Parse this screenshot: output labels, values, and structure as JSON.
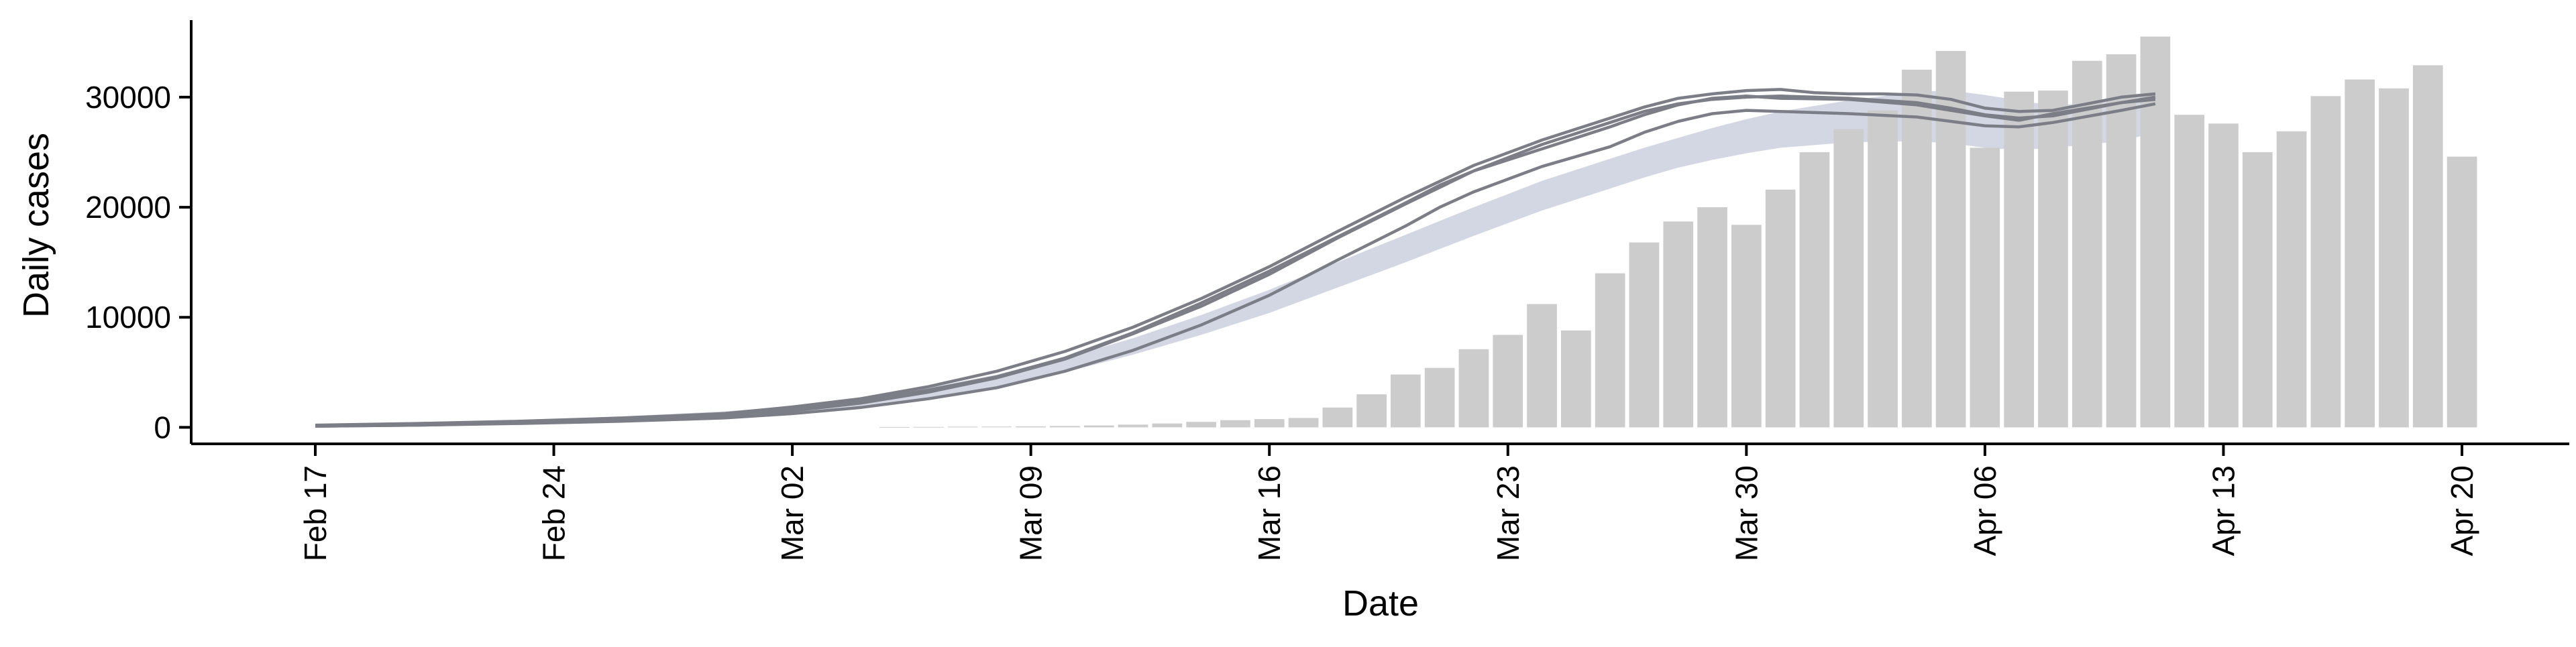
{
  "chart_data": {
    "type": "bar",
    "title": "",
    "xlabel": "Date",
    "ylabel": "Daily cases",
    "x_range": [
      "2020-02-17",
      "2020-04-20"
    ],
    "ylim": [
      -1500,
      37000
    ],
    "grid": false,
    "legend": "none",
    "x_ticks": [
      {
        "date": "2020-02-17",
        "label": "Feb 17"
      },
      {
        "date": "2020-02-24",
        "label": "Feb 24"
      },
      {
        "date": "2020-03-02",
        "label": "Mar 02"
      },
      {
        "date": "2020-03-09",
        "label": "Mar 09"
      },
      {
        "date": "2020-03-16",
        "label": "Mar 16"
      },
      {
        "date": "2020-03-23",
        "label": "Mar 23"
      },
      {
        "date": "2020-03-30",
        "label": "Mar 30"
      },
      {
        "date": "2020-04-06",
        "label": "Apr 06"
      },
      {
        "date": "2020-04-13",
        "label": "Apr 13"
      },
      {
        "date": "2020-04-20",
        "label": "Apr 20"
      }
    ],
    "y_ticks": [
      {
        "value": 0,
        "label": "0"
      },
      {
        "value": 10000,
        "label": "10000"
      },
      {
        "value": 20000,
        "label": "20000"
      },
      {
        "value": 30000,
        "label": "30000"
      }
    ],
    "bars": {
      "color": "#cccccc",
      "x": [
        "2020-03-05",
        "2020-03-06",
        "2020-03-07",
        "2020-03-08",
        "2020-03-09",
        "2020-03-10",
        "2020-03-11",
        "2020-03-12",
        "2020-03-13",
        "2020-03-14",
        "2020-03-15",
        "2020-03-16",
        "2020-03-17",
        "2020-03-18",
        "2020-03-19",
        "2020-03-20",
        "2020-03-21",
        "2020-03-22",
        "2020-03-23",
        "2020-03-24",
        "2020-03-25",
        "2020-03-26",
        "2020-03-27",
        "2020-03-28",
        "2020-03-29",
        "2020-03-30",
        "2020-03-31",
        "2020-04-01",
        "2020-04-02",
        "2020-04-03",
        "2020-04-04",
        "2020-04-05",
        "2020-04-06",
        "2020-04-07",
        "2020-04-08",
        "2020-04-09",
        "2020-04-10",
        "2020-04-11",
        "2020-04-12",
        "2020-04-13",
        "2020-04-14",
        "2020-04-15",
        "2020-04-16",
        "2020-04-17",
        "2020-04-18",
        "2020-04-19",
        "2020-04-20"
      ],
      "values": [
        30,
        40,
        60,
        70,
        90,
        120,
        170,
        250,
        350,
        500,
        650,
        750,
        850,
        1800,
        3000,
        4800,
        5400,
        7100,
        8400,
        11200,
        8800,
        14000,
        16800,
        18700,
        20000,
        18400,
        21600,
        25000,
        27100,
        28800,
        32500,
        34200,
        25400,
        30500,
        30600,
        33300,
        33900,
        35500,
        28400,
        27600,
        25000,
        26900,
        30100,
        31600,
        30800,
        32900,
        24600
      ]
    },
    "band": {
      "color": "#cdd3e0",
      "x": [
        "2020-02-17",
        "2020-02-20",
        "2020-02-23",
        "2020-02-26",
        "2020-02-29",
        "2020-03-02",
        "2020-03-04",
        "2020-03-06",
        "2020-03-08",
        "2020-03-10",
        "2020-03-12",
        "2020-03-14",
        "2020-03-16",
        "2020-03-18",
        "2020-03-20",
        "2020-03-22",
        "2020-03-24",
        "2020-03-26",
        "2020-03-27",
        "2020-03-28",
        "2020-03-29",
        "2020-03-30",
        "2020-03-31",
        "2020-04-02",
        "2020-04-04",
        "2020-04-05",
        "2020-04-06",
        "2020-04-07",
        "2020-04-08",
        "2020-04-10",
        "2020-04-11"
      ],
      "upper": [
        250,
        400,
        650,
        1000,
        1450,
        1900,
        2600,
        3600,
        4800,
        6300,
        8100,
        10200,
        12500,
        15000,
        17500,
        20000,
        22400,
        24400,
        25400,
        26300,
        27200,
        28000,
        28700,
        29700,
        30500,
        30600,
        30200,
        29700,
        29200,
        29800,
        30500
      ],
      "lower": [
        100,
        220,
        400,
        660,
        1000,
        1400,
        1900,
        2700,
        3700,
        5000,
        6600,
        8400,
        10400,
        12700,
        15000,
        17400,
        19700,
        21700,
        22700,
        23600,
        24300,
        24900,
        25400,
        25900,
        26000,
        25800,
        25400,
        25200,
        25400,
        26000,
        26800
      ]
    },
    "lines": [
      {
        "color": "#7b7e86",
        "x": [
          "2020-02-17",
          "2020-02-20",
          "2020-02-23",
          "2020-02-26",
          "2020-02-29",
          "2020-03-02",
          "2020-03-04",
          "2020-03-06",
          "2020-03-08",
          "2020-03-10",
          "2020-03-12",
          "2020-03-14",
          "2020-03-16",
          "2020-03-18",
          "2020-03-20",
          "2020-03-21",
          "2020-03-22",
          "2020-03-24",
          "2020-03-26",
          "2020-03-27",
          "2020-03-28",
          "2020-03-29",
          "2020-03-30",
          "2020-03-31",
          "2020-04-02",
          "2020-04-04",
          "2020-04-05",
          "2020-04-06",
          "2020-04-07",
          "2020-04-08",
          "2020-04-10",
          "2020-04-11"
        ],
        "values": [
          200,
          350,
          550,
          850,
          1250,
          1750,
          2400,
          3400,
          4600,
          6300,
          8600,
          11300,
          14200,
          17300,
          20400,
          22000,
          23300,
          25300,
          27300,
          28400,
          29300,
          29900,
          30100,
          29900,
          29800,
          29300,
          28800,
          28300,
          27900,
          28500,
          29500,
          30000
        ]
      },
      {
        "color": "#7b7e86",
        "x": [
          "2020-02-17",
          "2020-02-20",
          "2020-02-23",
          "2020-02-26",
          "2020-02-29",
          "2020-03-02",
          "2020-03-04",
          "2020-03-06",
          "2020-03-08",
          "2020-03-10",
          "2020-03-12",
          "2020-03-14",
          "2020-03-16",
          "2020-03-18",
          "2020-03-20",
          "2020-03-21",
          "2020-03-22",
          "2020-03-24",
          "2020-03-26",
          "2020-03-27",
          "2020-03-28",
          "2020-03-29",
          "2020-03-30",
          "2020-03-31",
          "2020-04-02",
          "2020-04-04",
          "2020-04-05",
          "2020-04-06",
          "2020-04-07",
          "2020-04-08",
          "2020-04-10",
          "2020-04-11"
        ],
        "values": [
          100,
          200,
          350,
          550,
          850,
          1250,
          1800,
          2600,
          3600,
          5100,
          7000,
          9300,
          12000,
          15200,
          18300,
          20000,
          21400,
          23700,
          25500,
          26800,
          27800,
          28500,
          28800,
          28700,
          28500,
          28200,
          27800,
          27400,
          27300,
          27700,
          28800,
          29400
        ]
      },
      {
        "color": "#7b7e86",
        "x": [
          "2020-02-17",
          "2020-02-20",
          "2020-02-23",
          "2020-02-26",
          "2020-02-29",
          "2020-03-02",
          "2020-03-04",
          "2020-03-06",
          "2020-03-08",
          "2020-03-10",
          "2020-03-12",
          "2020-03-14",
          "2020-03-16",
          "2020-03-18",
          "2020-03-20",
          "2020-03-22",
          "2020-03-24",
          "2020-03-26",
          "2020-03-27",
          "2020-03-28",
          "2020-03-29",
          "2020-03-30",
          "2020-03-31",
          "2020-04-01",
          "2020-04-02",
          "2020-04-03",
          "2020-04-04",
          "2020-04-05",
          "2020-04-06",
          "2020-04-07",
          "2020-04-08",
          "2020-04-09",
          "2020-04-10",
          "2020-04-11"
        ],
        "values": [
          150,
          280,
          500,
          800,
          1250,
          1850,
          2600,
          3700,
          5100,
          6900,
          9100,
          11700,
          14600,
          17800,
          20900,
          23800,
          26100,
          28100,
          29100,
          29900,
          30300,
          30600,
          30700,
          30400,
          30300,
          30300,
          30200,
          29800,
          29000,
          28700,
          28800,
          29400,
          30000,
          30300
        ]
      },
      {
        "color": "#7b7e86",
        "x": [
          "2020-02-17",
          "2020-02-20",
          "2020-02-23",
          "2020-02-26",
          "2020-02-29",
          "2020-03-02",
          "2020-03-04",
          "2020-03-06",
          "2020-03-08",
          "2020-03-10",
          "2020-03-12",
          "2020-03-14",
          "2020-03-16",
          "2020-03-18",
          "2020-03-20",
          "2020-03-22",
          "2020-03-24",
          "2020-03-26",
          "2020-03-27",
          "2020-03-28",
          "2020-03-29",
          "2020-03-30",
          "2020-03-31",
          "2020-04-01",
          "2020-04-02",
          "2020-04-03",
          "2020-04-04",
          "2020-04-05",
          "2020-04-06",
          "2020-04-07",
          "2020-04-08",
          "2020-04-09",
          "2020-04-10",
          "2020-04-11"
        ],
        "values": [
          100,
          200,
          380,
          650,
          1000,
          1500,
          2200,
          3200,
          4500,
          6200,
          8500,
          11000,
          13900,
          17200,
          20300,
          23300,
          25700,
          27700,
          28700,
          29400,
          29800,
          30000,
          30100,
          30000,
          29900,
          29700,
          29500,
          29000,
          28400,
          28100,
          28300,
          28900,
          29500,
          29800
        ]
      }
    ]
  }
}
